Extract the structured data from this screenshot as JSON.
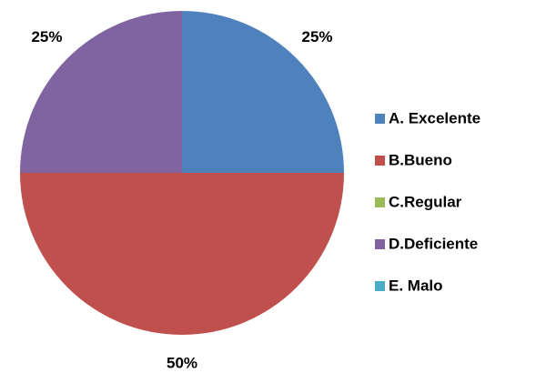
{
  "chart_data": {
    "type": "pie",
    "categories": [
      "A. Excelente",
      "B.Bueno",
      "C.Regular",
      "D.Deficiente",
      "E. Malo"
    ],
    "values": [
      25,
      50,
      0,
      25,
      0
    ],
    "value_labels": [
      "25%",
      "50%",
      null,
      "25%",
      null
    ],
    "colors": [
      "#4f81bd",
      "#c0504d",
      "#9bbb59",
      "#8064a2",
      "#4bacc6"
    ],
    "legend": "right"
  }
}
